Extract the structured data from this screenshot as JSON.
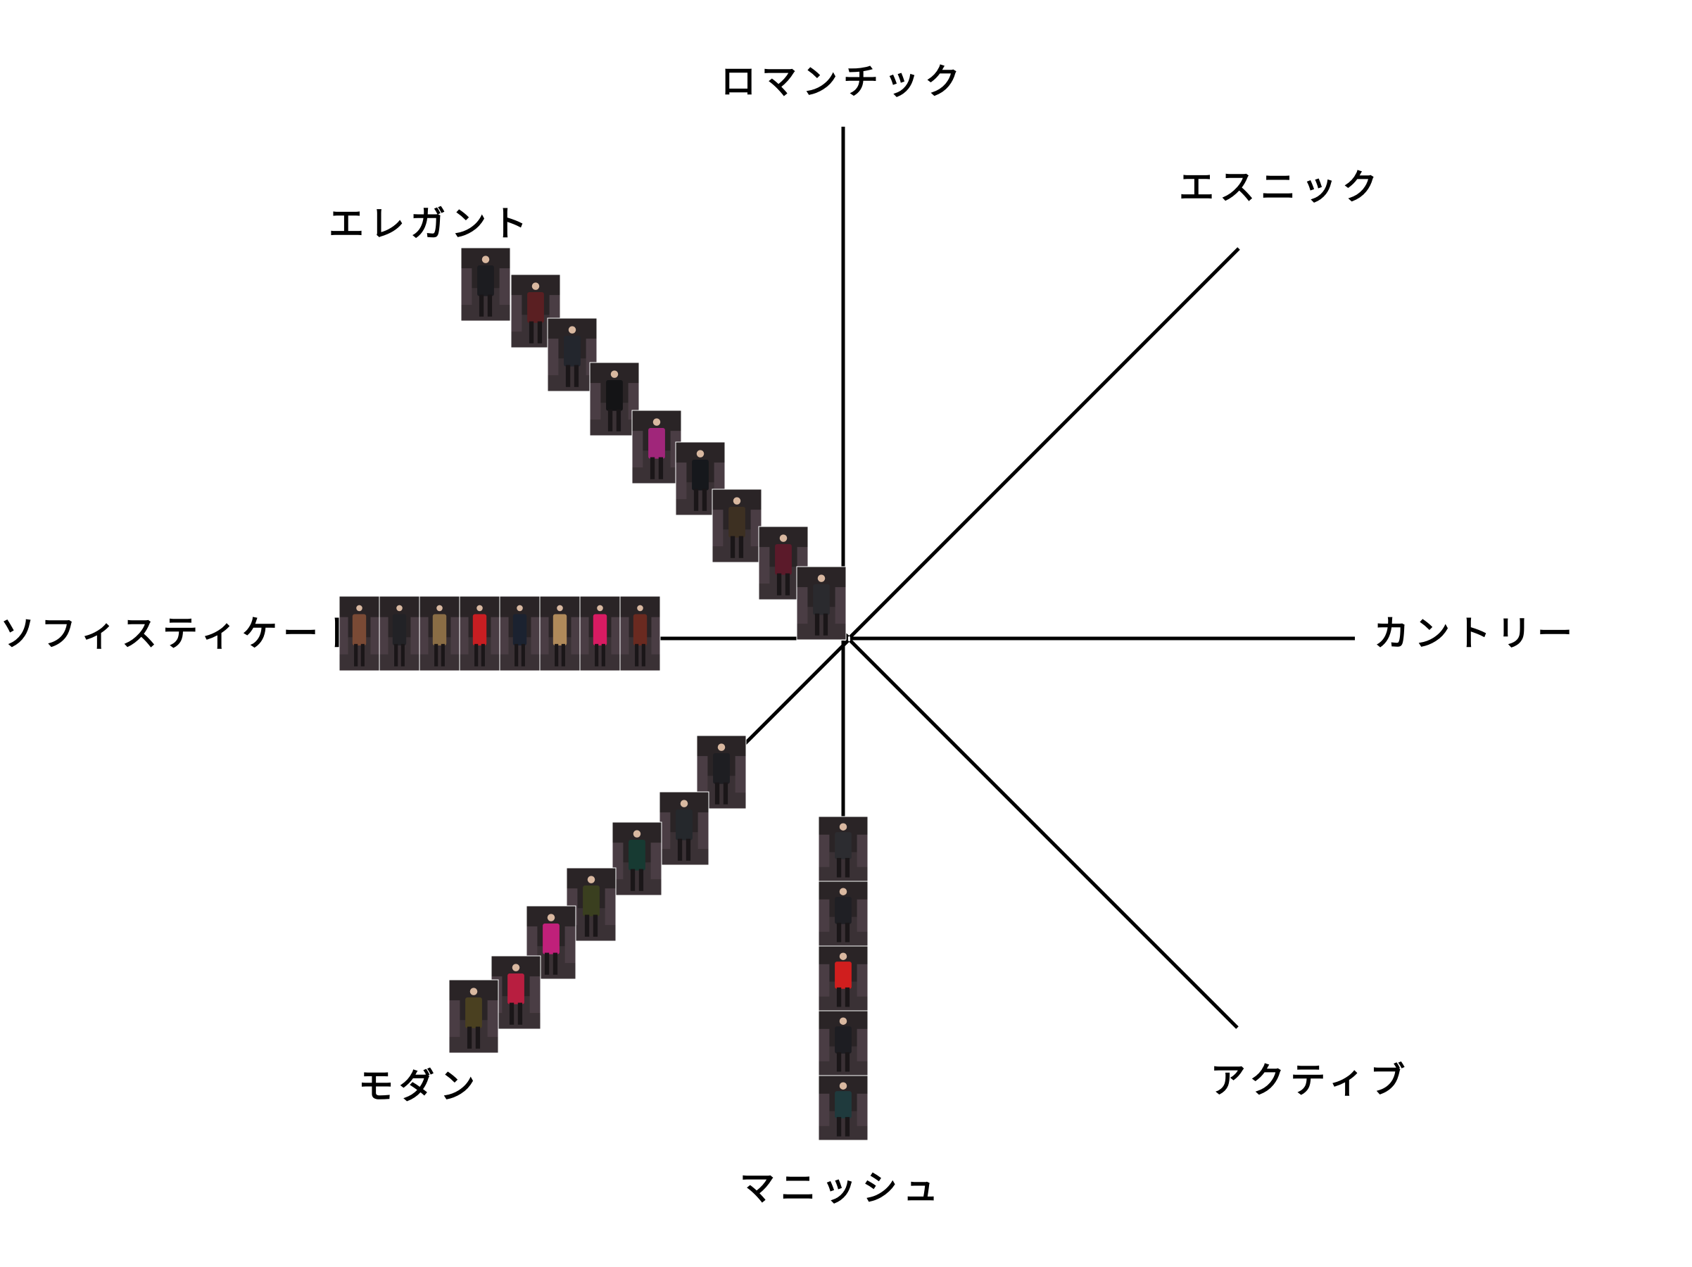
{
  "axes": [
    {
      "id": "romantic",
      "label": "ロマンチック"
    },
    {
      "id": "ethnic",
      "label": "エスニック"
    },
    {
      "id": "country",
      "label": "カントリー"
    },
    {
      "id": "active",
      "label": "アクティブ"
    },
    {
      "id": "mannish",
      "label": "マニッシュ"
    },
    {
      "id": "modern",
      "label": "モダン"
    },
    {
      "id": "sophisticated",
      "label": "ソフィスティケート"
    },
    {
      "id": "elegant",
      "label": "エレガント"
    }
  ],
  "look_groups": [
    {
      "axis": "elegant",
      "count": 9,
      "outfit_colors": [
        "#1c1c20",
        "#5a1f22",
        "#23262d",
        "#141416",
        "#a0267a",
        "#16181c",
        "#3d3022",
        "#5b1a2a",
        "#2a2a2e"
      ]
    },
    {
      "axis": "sophisticated",
      "count": 8,
      "outfit_colors": [
        "#7a4a35",
        "#222226",
        "#8a6d45",
        "#c81e22",
        "#1b2230",
        "#b08a5a",
        "#d81b62",
        "#6a2a20"
      ]
    },
    {
      "axis": "modern",
      "count": 7,
      "outfit_colors": [
        "#1e1e22",
        "#25282c",
        "#173a32",
        "#3a3f1f",
        "#c0207a",
        "#b81e40",
        "#4a4020"
      ]
    },
    {
      "axis": "mannish",
      "count": 5,
      "outfit_colors": [
        "#2c2c30",
        "#1f1f24",
        "#d01e1e",
        "#1d1d22",
        "#1f3a3d"
      ]
    }
  ]
}
